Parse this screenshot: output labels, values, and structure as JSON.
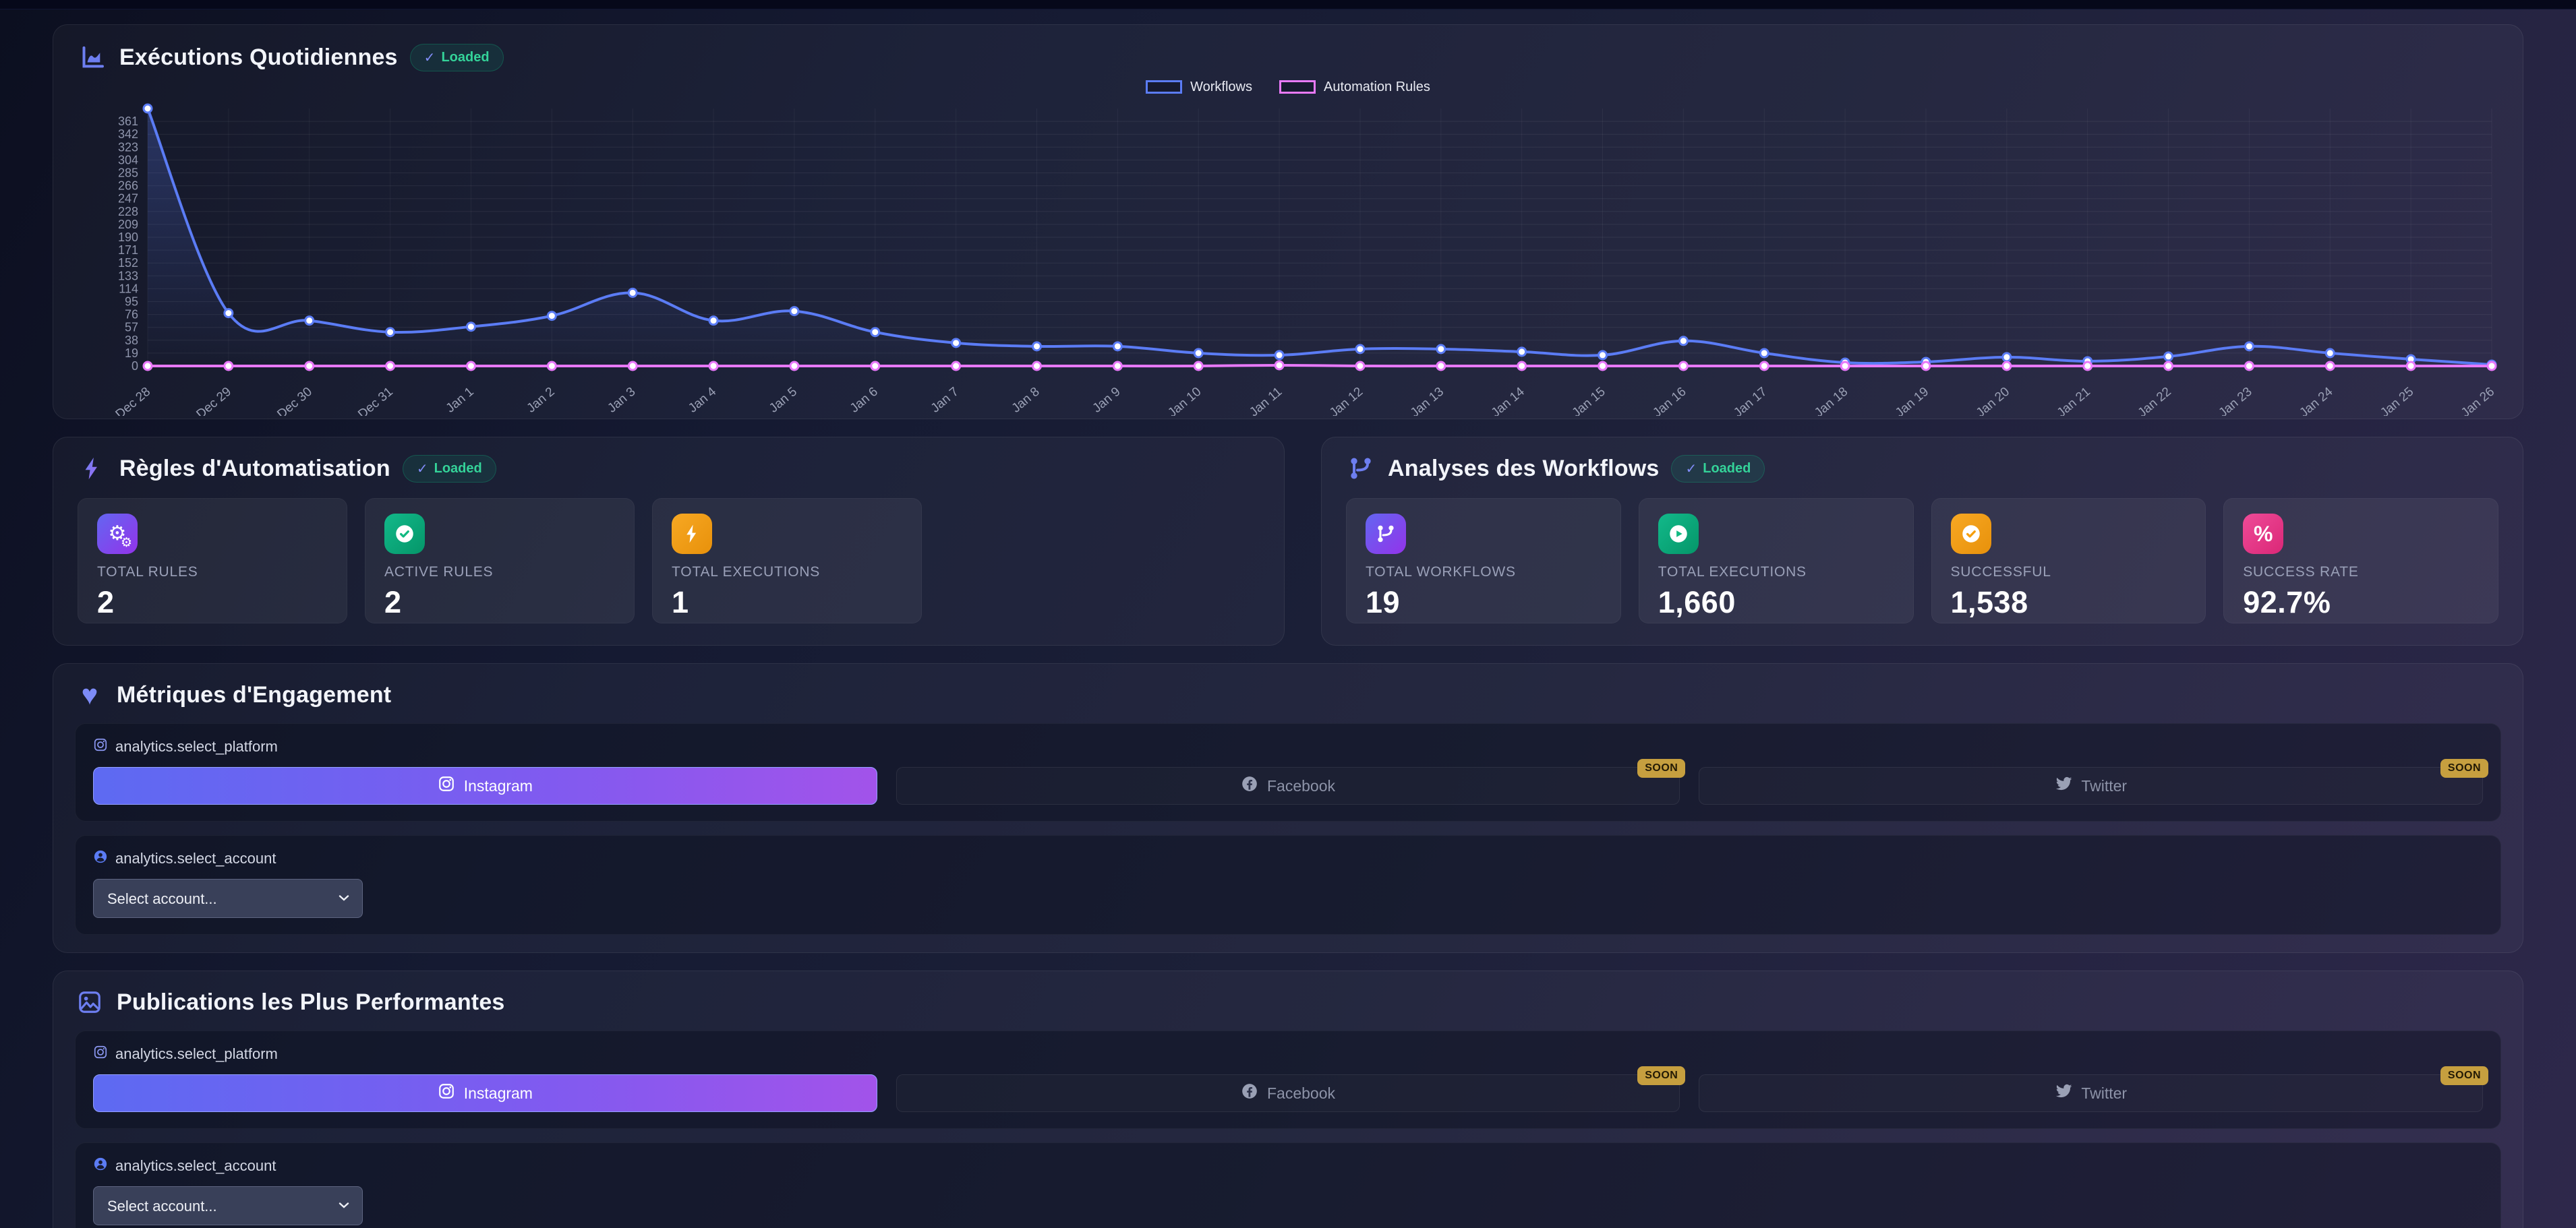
{
  "daily_executions": {
    "title": "Exécutions Quotidiennes",
    "badge_check": "✓",
    "badge_label": "Loaded",
    "chart_data": {
      "type": "line",
      "x": [
        "Dec 28",
        "Dec 29",
        "Dec 30",
        "Dec 31",
        "Jan 1",
        "Jan 2",
        "Jan 3",
        "Jan 4",
        "Jan 5",
        "Jan 6",
        "Jan 7",
        "Jan 8",
        "Jan 9",
        "Jan 10",
        "Jan 11",
        "Jan 12",
        "Jan 13",
        "Jan 14",
        "Jan 15",
        "Jan 16",
        "Jan 17",
        "Jan 18",
        "Jan 19",
        "Jan 20",
        "Jan 21",
        "Jan 22",
        "Jan 23",
        "Jan 24",
        "Jan 25",
        "Jan 26"
      ],
      "series": [
        {
          "name": "Workflows",
          "color": "#5B7CF5",
          "area": true,
          "values": [
            380,
            78,
            67,
            50,
            58,
            74,
            108,
            67,
            81,
            50,
            34,
            29,
            29,
            19,
            16,
            25,
            25,
            21,
            16,
            37,
            19,
            5,
            6,
            13,
            7,
            14,
            29,
            19,
            10,
            2
          ]
        },
        {
          "name": "Automation Rules",
          "color": "#E879F9",
          "area": false,
          "values": [
            0,
            0,
            0,
            0,
            0,
            0,
            0,
            0,
            0,
            0,
            0,
            0,
            0,
            0,
            1,
            0,
            0,
            0,
            0,
            0,
            0,
            0,
            0,
            0,
            0,
            0,
            0,
            0,
            0,
            0
          ]
        }
      ],
      "ylim": [
        0,
        380
      ],
      "ytick_step": 19,
      "grid": true,
      "legend_position": "top"
    }
  },
  "automation_rules": {
    "title": "Règles d'Automatisation",
    "badge_check": "✓",
    "badge_label": "Loaded",
    "stats": [
      {
        "label": "TOTAL RULES",
        "value": "2",
        "icon": "gears-icon",
        "color": "purple"
      },
      {
        "label": "ACTIVE RULES",
        "value": "2",
        "icon": "check-circle-icon",
        "color": "green"
      },
      {
        "label": "TOTAL EXECUTIONS",
        "value": "1",
        "icon": "bolt-icon",
        "color": "orange"
      }
    ]
  },
  "workflow_analytics": {
    "title": "Analyses des Workflows",
    "badge_check": "✓",
    "badge_label": "Loaded",
    "stats": [
      {
        "label": "TOTAL WORKFLOWS",
        "value": "19",
        "icon": "workflow-icon",
        "color": "purple"
      },
      {
        "label": "TOTAL EXECUTIONS",
        "value": "1,660",
        "icon": "play-circle-icon",
        "color": "green"
      },
      {
        "label": "SUCCESSFUL",
        "value": "1,538",
        "icon": "check-circle-icon",
        "color": "orange"
      },
      {
        "label": "SUCCESS RATE",
        "value": "92.7%",
        "icon": "percent-icon",
        "color": "pink"
      }
    ]
  },
  "engagement_metrics": {
    "title": "Métriques d'Engagement",
    "platform_field": {
      "label": "analytics.select_platform",
      "soon_badge": "SOON",
      "options": [
        {
          "name": "Instagram",
          "state": "selected"
        },
        {
          "name": "Facebook",
          "state": "coming-soon"
        },
        {
          "name": "Twitter",
          "state": "coming-soon"
        }
      ]
    },
    "account_field": {
      "label": "analytics.select_account",
      "placeholder": "Select account..."
    }
  },
  "top_posts": {
    "title": "Publications les Plus Performantes",
    "platform_field": {
      "label": "analytics.select_platform",
      "soon_badge": "SOON",
      "options": [
        {
          "name": "Instagram",
          "state": "selected"
        },
        {
          "name": "Facebook",
          "state": "coming-soon"
        },
        {
          "name": "Twitter",
          "state": "coming-soon"
        }
      ]
    },
    "account_field": {
      "label": "analytics.select_account",
      "placeholder": "Select account..."
    }
  },
  "colors": {
    "accent_blue": "#5B7CF5",
    "accent_pink": "#E879F9",
    "success_green": "#34D399",
    "icon_purple": "#6366F1",
    "icon_green": "#10B981",
    "icon_orange": "#F59E0B",
    "icon_pink": "#EC4899",
    "soon_gold": "#C69F3F"
  }
}
